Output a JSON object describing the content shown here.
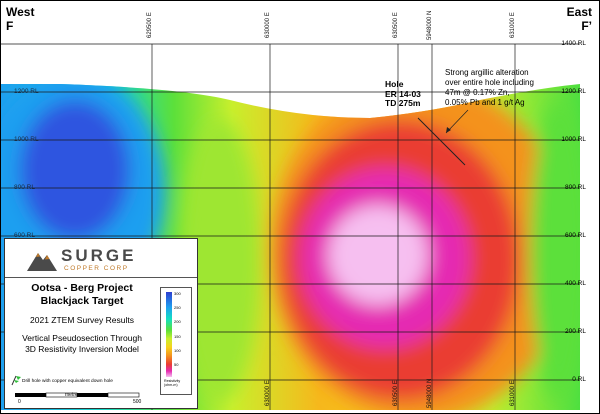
{
  "section": {
    "west_label": "West",
    "west_letter": "F",
    "east_label": "East",
    "east_letter": "F’",
    "rl_left": [
      "1200 RL",
      "1000 RL",
      "800 RL",
      "600 RL"
    ],
    "rl_right": [
      "1400 RL",
      "1200 RL",
      "1000 RL",
      "800 RL",
      "600 RL",
      "400 RL",
      "200 RL",
      "0 RL"
    ],
    "easting_top": [
      "629500 E",
      "630000 E",
      "630500 E",
      "5948000 N",
      "631000 E"
    ],
    "easting_bottom": [
      "630000 E",
      "630500 E",
      "5948000 N",
      "631000 E"
    ],
    "drill_hole": {
      "line1": "Hole",
      "line2": "ER 14-03",
      "line3": "TD 275m"
    },
    "alteration_note": [
      "Strong argillic alteration",
      "over entire hole including",
      "47m @ 0.17% Zn,",
      "0.05% Pb and 1 g/t Ag"
    ]
  },
  "legend": {
    "brand": "SURGE",
    "brand_sub": "COPPER CORP",
    "brand_colors": {
      "dark": "#4a4a4a",
      "accent": "#c07a2a"
    },
    "project_line1": "Ootsa - Berg Project",
    "project_line2": "Blackjack Target",
    "survey": "2021 ZTEM Survey Results",
    "model_line1": "Vertical Pseudosection Through",
    "model_line2": "3D Resistivity Inversion Model",
    "drill_legend": "Drill hole with copper equivalent down hole",
    "scale_unit": "metres",
    "scale_0": "0",
    "scale_500": "500",
    "colorbar_ticks": [
      "300",
      "250",
      "200",
      "150",
      "100",
      "50"
    ],
    "colorbar_title_1": "Resistivity",
    "colorbar_title_2": "(ohm-m)"
  }
}
